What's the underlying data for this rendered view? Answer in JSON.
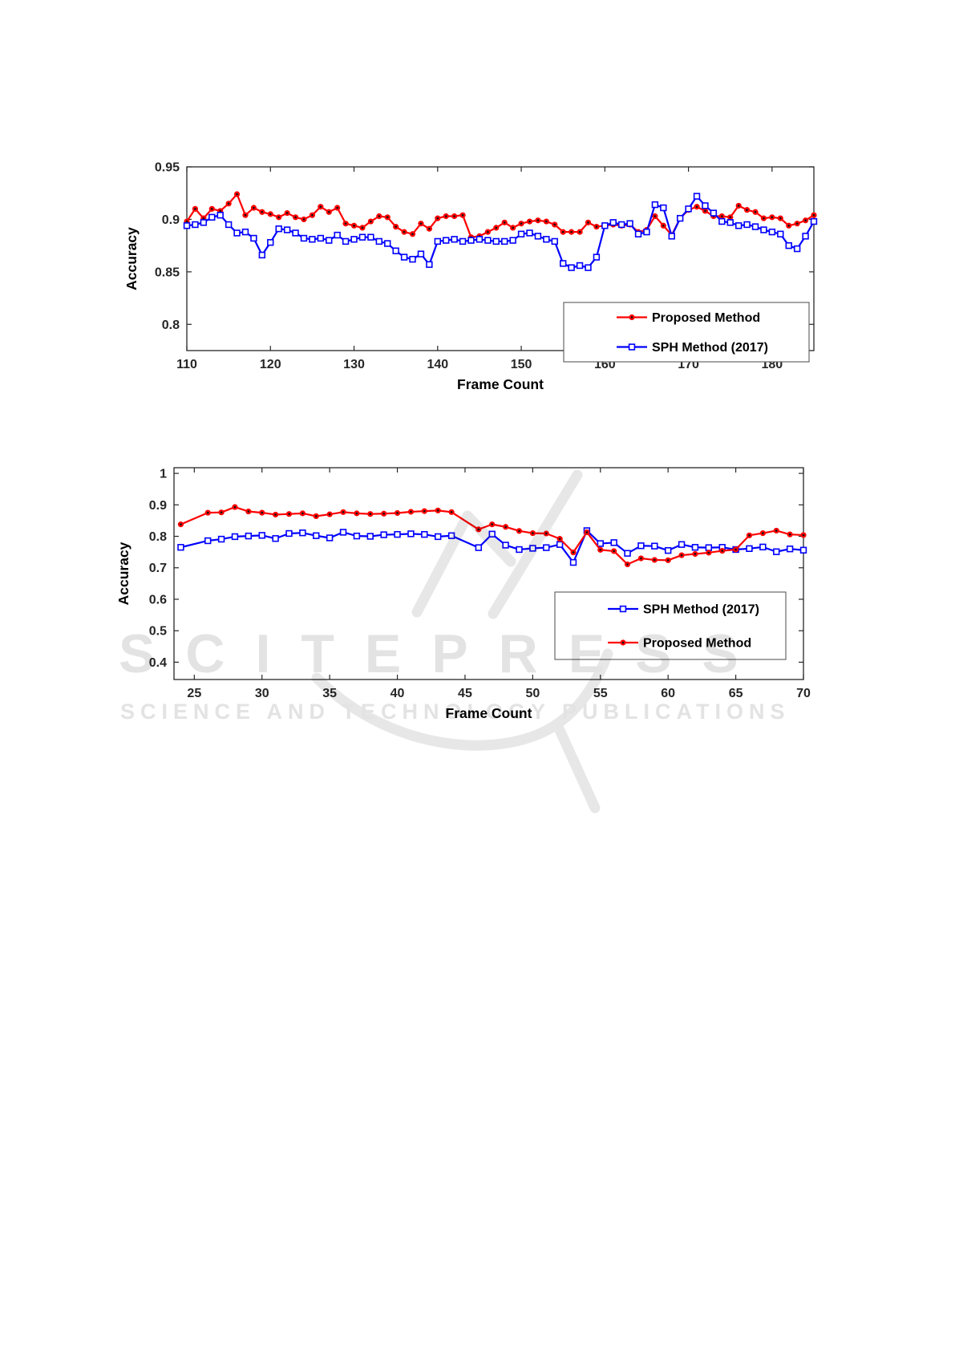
{
  "page": {
    "background": "#ffffff"
  },
  "watermark": {
    "line1": "SCITEPRESS",
    "line2": "SCIENCE AND TECHNOLOGY PUBLICATIONS",
    "color": "#e3e3e3"
  },
  "colors": {
    "proposed_method": "#ff0000",
    "sph_method": "#0000ff",
    "axis": "#262626",
    "legend_edge": "#5a5a5a",
    "legend_text": "#000000"
  },
  "chart_data": [
    {
      "type": "line",
      "title": "",
      "xlabel": "Frame Count",
      "ylabel": "Accuracy",
      "xlim": [
        110,
        185
      ],
      "ylim": [
        0.775,
        0.95
      ],
      "xticks": [
        110,
        120,
        130,
        140,
        150,
        160,
        170,
        180
      ],
      "xtick_labels": [
        "110",
        "120",
        "130",
        "140",
        "150",
        "160",
        "170",
        "180"
      ],
      "yticks": [
        0.8,
        0.85,
        0.9,
        0.95
      ],
      "ytick_labels": [
        "0.8",
        "0.85",
        "0.9",
        "0.95"
      ],
      "grid": false,
      "legend_position": "inside lower right",
      "series": [
        {
          "name": "Proposed Method",
          "color": "#ff0000",
          "marker": "filled-circle",
          "x": [
            110,
            111,
            112,
            113,
            114,
            115,
            116,
            117,
            118,
            119,
            120,
            121,
            122,
            123,
            124,
            125,
            126,
            127,
            128,
            129,
            130,
            131,
            132,
            133,
            134,
            135,
            136,
            137,
            138,
            139,
            140,
            141,
            142,
            143,
            144,
            145,
            146,
            147,
            148,
            149,
            150,
            151,
            152,
            153,
            154,
            155,
            156,
            157,
            158,
            159,
            160,
            161,
            162,
            163,
            164,
            165,
            166,
            167,
            168,
            169,
            170,
            171,
            172,
            173,
            174,
            175,
            176,
            177,
            178,
            179,
            180,
            181,
            182,
            183,
            184,
            185
          ],
          "values": [
            0.898,
            0.91,
            0.901,
            0.91,
            0.908,
            0.915,
            0.924,
            0.904,
            0.911,
            0.907,
            0.905,
            0.902,
            0.906,
            0.902,
            0.9,
            0.904,
            0.912,
            0.907,
            0.911,
            0.896,
            0.894,
            0.892,
            0.898,
            0.903,
            0.902,
            0.893,
            0.888,
            0.886,
            0.896,
            0.891,
            0.901,
            0.903,
            0.903,
            0.904,
            0.883,
            0.884,
            0.888,
            0.892,
            0.897,
            0.892,
            0.896,
            0.898,
            0.899,
            0.898,
            0.895,
            0.888,
            0.888,
            0.888,
            0.897,
            0.893,
            0.894,
            0.895,
            0.894,
            0.895,
            0.888,
            0.89,
            0.903,
            0.894,
            0.885,
            0.901,
            0.909,
            0.912,
            0.908,
            0.903,
            0.903,
            0.902,
            0.913,
            0.909,
            0.907,
            0.901,
            0.902,
            0.901,
            0.894,
            0.896,
            0.899,
            0.904
          ]
        },
        {
          "name": "SPH Method (2017)",
          "color": "#0000ff",
          "marker": "open-square",
          "x": [
            110,
            111,
            112,
            113,
            114,
            115,
            116,
            117,
            118,
            119,
            120,
            121,
            122,
            123,
            124,
            125,
            126,
            127,
            128,
            129,
            130,
            131,
            132,
            133,
            134,
            135,
            136,
            137,
            138,
            139,
            140,
            141,
            142,
            143,
            144,
            145,
            146,
            147,
            148,
            149,
            150,
            151,
            152,
            153,
            154,
            155,
            156,
            157,
            158,
            159,
            160,
            161,
            162,
            163,
            164,
            165,
            166,
            167,
            168,
            169,
            170,
            171,
            172,
            173,
            174,
            175,
            176,
            177,
            178,
            179,
            180,
            181,
            182,
            183,
            184,
            185
          ],
          "values": [
            0.894,
            0.895,
            0.897,
            0.902,
            0.904,
            0.895,
            0.887,
            0.888,
            0.882,
            0.866,
            0.878,
            0.891,
            0.89,
            0.887,
            0.882,
            0.881,
            0.882,
            0.88,
            0.885,
            0.879,
            0.881,
            0.883,
            0.883,
            0.879,
            0.877,
            0.87,
            0.864,
            0.862,
            0.867,
            0.857,
            0.879,
            0.88,
            0.881,
            0.879,
            0.88,
            0.881,
            0.88,
            0.879,
            0.879,
            0.88,
            0.886,
            0.887,
            0.884,
            0.881,
            0.879,
            0.858,
            0.854,
            0.856,
            0.854,
            0.864,
            0.894,
            0.897,
            0.895,
            0.896,
            0.886,
            0.888,
            0.914,
            0.911,
            0.884,
            0.901,
            0.91,
            0.922,
            0.913,
            0.906,
            0.898,
            0.897,
            0.894,
            0.895,
            0.893,
            0.89,
            0.888,
            0.886,
            0.875,
            0.872,
            0.884,
            0.898
          ]
        }
      ]
    },
    {
      "type": "line",
      "title": "",
      "xlabel": "Frame Count",
      "ylabel": "Accuracy",
      "xlim": [
        23.5,
        70
      ],
      "ylim": [
        0.345,
        1.018
      ],
      "xticks": [
        25,
        30,
        35,
        40,
        45,
        50,
        55,
        60,
        65,
        70
      ],
      "xtick_labels": [
        "25",
        "30",
        "35",
        "40",
        "45",
        "50",
        "55",
        "60",
        "65",
        "70"
      ],
      "yticks": [
        0.4,
        0.5,
        0.6,
        0.7,
        0.8,
        0.9,
        1
      ],
      "ytick_labels": [
        "0.4",
        "0.5",
        "0.6",
        "0.7",
        "0.8",
        "0.9",
        "1"
      ],
      "grid": false,
      "legend_position": "inside lower middle-right",
      "series": [
        {
          "name": "SPH Method (2017)",
          "color": "#0000ff",
          "marker": "open-square",
          "x": [
            24,
            26,
            27,
            28,
            29,
            30,
            31,
            32,
            33,
            34,
            35,
            36,
            37,
            38,
            39,
            40,
            41,
            42,
            43,
            44,
            46,
            47,
            48,
            49,
            50,
            51,
            52,
            53,
            54,
            55,
            56,
            57,
            58,
            59,
            60,
            61,
            62,
            63,
            64,
            65,
            66,
            67,
            68,
            69,
            70
          ],
          "values": [
            0.765,
            0.786,
            0.791,
            0.799,
            0.801,
            0.803,
            0.793,
            0.809,
            0.811,
            0.802,
            0.795,
            0.813,
            0.801,
            0.8,
            0.805,
            0.806,
            0.808,
            0.806,
            0.799,
            0.802,
            0.764,
            0.807,
            0.772,
            0.758,
            0.762,
            0.764,
            0.774,
            0.717,
            0.818,
            0.777,
            0.78,
            0.746,
            0.77,
            0.769,
            0.755,
            0.774,
            0.765,
            0.764,
            0.765,
            0.758,
            0.761,
            0.766,
            0.751,
            0.76,
            0.756
          ]
        },
        {
          "name": "Proposed Method",
          "color": "#ff0000",
          "marker": "filled-circle",
          "x": [
            24,
            26,
            27,
            28,
            29,
            30,
            31,
            32,
            33,
            34,
            35,
            36,
            37,
            38,
            39,
            40,
            41,
            42,
            43,
            44,
            46,
            47,
            48,
            49,
            50,
            51,
            52,
            53,
            54,
            55,
            56,
            57,
            58,
            59,
            60,
            61,
            62,
            63,
            64,
            65,
            66,
            67,
            68,
            69,
            70
          ],
          "values": [
            0.838,
            0.875,
            0.876,
            0.893,
            0.879,
            0.875,
            0.869,
            0.871,
            0.873,
            0.864,
            0.87,
            0.877,
            0.873,
            0.871,
            0.872,
            0.874,
            0.878,
            0.88,
            0.882,
            0.877,
            0.822,
            0.838,
            0.83,
            0.817,
            0.81,
            0.809,
            0.792,
            0.749,
            0.813,
            0.757,
            0.753,
            0.711,
            0.73,
            0.725,
            0.724,
            0.74,
            0.744,
            0.748,
            0.754,
            0.758,
            0.803,
            0.81,
            0.818,
            0.806,
            0.804
          ]
        }
      ]
    }
  ]
}
